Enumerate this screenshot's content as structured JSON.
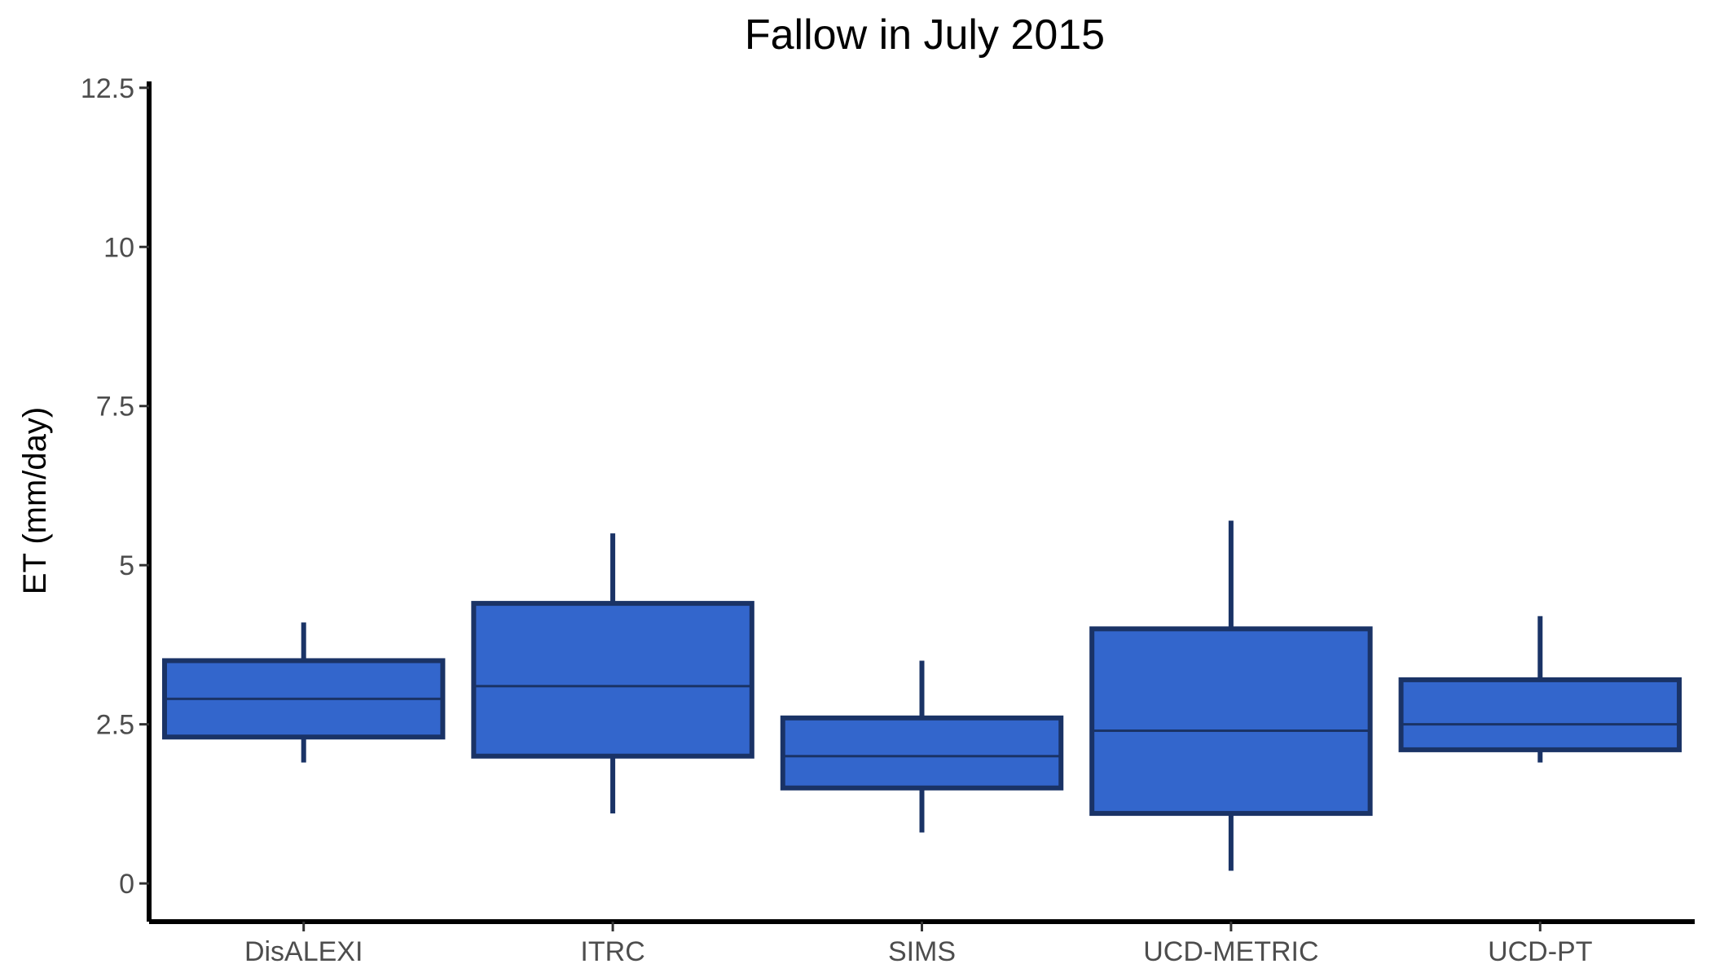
{
  "chart_data": {
    "type": "boxplot",
    "title": "Fallow in July 2015",
    "xlabel": "",
    "ylabel": "ET (mm/day)",
    "ylim": [
      -0.6,
      12.6
    ],
    "yticks": [
      "0",
      "2.5",
      "5",
      "7.5",
      "10",
      "12.5"
    ],
    "ytick_values": [
      0,
      2.5,
      5,
      7.5,
      10,
      12.5
    ],
    "categories": [
      "DisALEXI",
      "ITRC",
      "SIMS",
      "UCD-METRIC",
      "UCD-PT"
    ],
    "boxes": [
      {
        "category": "DisALEXI",
        "whisker_low": 1.9,
        "q1": 2.3,
        "median": 2.9,
        "q3": 3.5,
        "whisker_high": 4.1
      },
      {
        "category": "ITRC",
        "whisker_low": 1.1,
        "q1": 2.0,
        "median": 3.1,
        "q3": 4.4,
        "whisker_high": 5.5
      },
      {
        "category": "SIMS",
        "whisker_low": 0.8,
        "q1": 1.5,
        "median": 2.0,
        "q3": 2.6,
        "whisker_high": 3.5
      },
      {
        "category": "UCD-METRIC",
        "whisker_low": 0.2,
        "q1": 1.1,
        "median": 2.4,
        "q3": 4.0,
        "whisker_high": 5.7
      },
      {
        "category": "UCD-PT",
        "whisker_low": 1.9,
        "q1": 2.1,
        "median": 2.5,
        "q3": 3.2,
        "whisker_high": 4.2
      }
    ],
    "colors": {
      "box_fill": "#3366cc",
      "box_outline": "#1a3366",
      "axis": "#000000"
    },
    "grid": false,
    "legend": "none"
  }
}
